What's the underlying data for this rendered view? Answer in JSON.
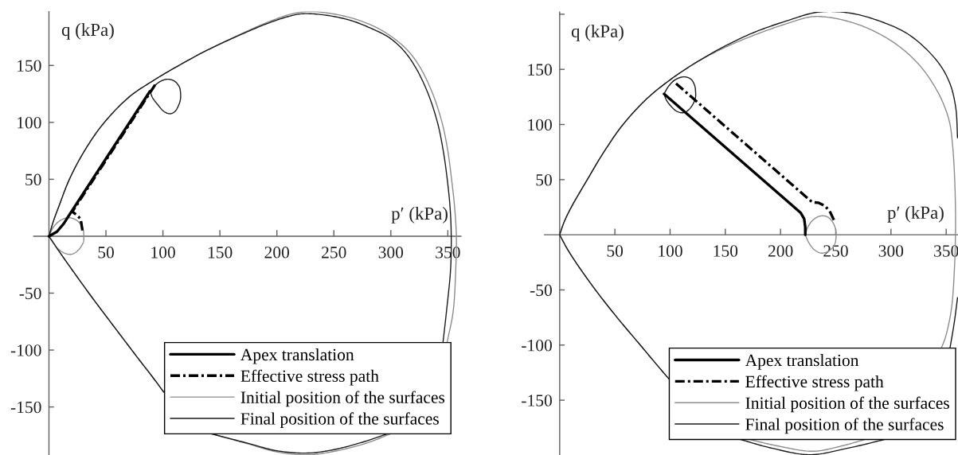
{
  "chart_data": [
    {
      "type": "line",
      "xlabel": "p′ (kPa)",
      "ylabel": "q (kPa)",
      "legend": "bottom right",
      "xlim": [
        -13.4,
        361.5
      ],
      "ylim": [
        -192.2,
        197.3
      ],
      "xticks": [
        50,
        100,
        150,
        200,
        250,
        300,
        350
      ],
      "yticks": [
        -150,
        -100,
        -50,
        50,
        100,
        150
      ],
      "series": [
        {
          "name": "Apex translation",
          "color": "#000000",
          "x": [
            0,
            7,
            13,
            18,
            88.6
          ],
          "values": [
            0,
            4,
            11,
            19,
            127.3
          ]
        },
        {
          "name": "Effective stress path",
          "color": "#000000",
          "line_style": "dashdot",
          "x": [
            29.4,
            27.8,
            24.3,
            20.5,
            93.7
          ],
          "values": [
            5,
            15.2,
            18.7,
            21.5,
            133.8
          ]
        },
        {
          "name": "Initial position of the surfaces",
          "color": "#8c8c8c",
          "x": [
            0,
            4,
            9,
            17.5,
            30,
            47,
            70,
            92,
            114,
            137,
            167,
            192,
            212,
            227,
            245,
            268,
            287,
            301,
            314,
            324.7,
            336,
            344.9,
            350,
            353.3,
            356,
            357.5,
            357,
            354.6,
            349.4,
            null,
            299.5,
            279.5,
            252.6,
            227,
            200,
            175,
            143,
            null,
            100.8,
            90,
            78,
            67,
            51.1,
            35.4,
            15.2,
            6,
            0,
            null,
            0,
            4,
            9,
            16.2,
            22.5,
            27.5,
            30.2,
            30.5,
            30.6,
            null,
            30.6,
            30.4,
            29.4,
            25.5,
            20,
            14,
            8,
            3.5,
            0
          ],
          "values": [
            0,
            13.5,
            27,
            49,
            73,
            98,
            122,
            137,
            150,
            162.5,
            177,
            188,
            195,
            197.3,
            196,
            191,
            183.5,
            175,
            164,
            150,
            127,
            100,
            75,
            50,
            25,
            0,
            -28,
            -66.8,
            -93,
            null,
            -173.7,
            -181.5,
            -188.5,
            -192,
            -189.5,
            -182.5,
            -173.7,
            null,
            -137,
            -122.5,
            -107,
            -92.5,
            -71.5,
            -50.5,
            -22.3,
            -9,
            0,
            null,
            0,
            8,
            13.2,
            16.2,
            15,
            11,
            5,
            2.5,
            -1,
            null,
            -1,
            -4.5,
            -7,
            -12.5,
            -15.8,
            -15,
            -11,
            -5.5,
            0
          ]
        },
        {
          "name": "Final position of the surfaces",
          "color": "#1a1a1a",
          "x": [
            0,
            4,
            9,
            17.5,
            30,
            47,
            70,
            92,
            114,
            137,
            167,
            192,
            210,
            222,
            242,
            265,
            284,
            297.8,
            310,
            320.7,
            332,
            340.9,
            346,
            349.5,
            352,
            353,
            352.4,
            349,
            345.8,
            null,
            296.5,
            275,
            250,
            227,
            200,
            175,
            143,
            null,
            100.8,
            90,
            78,
            67,
            51.1,
            35.4,
            15.2,
            6,
            0,
            null,
            88.6,
            93,
            99,
            104.8,
            110.5,
            114.5,
            115.3,
            115.6,
            null,
            115.6,
            115.3,
            114,
            110.5,
            106.3,
            101,
            95.5,
            91,
            88.6
          ],
          "values": [
            0,
            13.5,
            27,
            49,
            73,
            98,
            122,
            137,
            150,
            162.5,
            176.5,
            187,
            193,
            195.4,
            194.3,
            189.5,
            182,
            175,
            164.5,
            150,
            127,
            100,
            75,
            50,
            25,
            0,
            -29.6,
            -64.5,
            -93,
            null,
            -173.7,
            -181,
            -187.5,
            -190.5,
            -188.5,
            -182,
            -173.7,
            null,
            -137,
            -122.5,
            -107,
            -92.5,
            -71.5,
            -50.5,
            -22.3,
            -9,
            0,
            null,
            127.3,
            132.5,
            136.6,
            137.9,
            136,
            131,
            127.5,
            123.7,
            null,
            123.7,
            119.8,
            115.5,
            109.5,
            107.6,
            109.5,
            115.5,
            121.5,
            127.3
          ]
        }
      ]
    },
    {
      "type": "line",
      "xlabel": "p′ (kPa)",
      "ylabel": "q (kPa)",
      "legend": "bottom right",
      "xlim": [
        -13.7,
        360.7
      ],
      "ylim": [
        -199.7,
        202
      ],
      "xticks": [
        50,
        100,
        150,
        200,
        250,
        300,
        350
      ],
      "yticks": [
        -150,
        -100,
        -50,
        50,
        100,
        150,
        {
          "value": 200,
          "label": null
        }
      ],
      "series": [
        {
          "name": "Apex translation",
          "color": "#000000",
          "x": [
            222.4,
            222.4,
            221.4,
            218.2,
            94.5
          ],
          "values": [
            0,
            7,
            14.5,
            20,
            127.7
          ]
        },
        {
          "name": "Effective stress path",
          "color": "#000000",
          "line_style": "dashdot",
          "x": [
            248.3,
            245,
            240.5,
            234.5,
            228.7,
            102.7
          ],
          "values": [
            13.5,
            20.5,
            26,
            29,
            29.5,
            139.5
          ]
        },
        {
          "name": "Initial position of the surfaces",
          "color": "#8c8c8c",
          "x": [
            0,
            4,
            10,
            25,
            40,
            57,
            78,
            100,
            124,
            150,
            176,
            205.7,
            228,
            245,
            261.3,
            276,
            289.1,
            303,
            316.9,
            329,
            339.2,
            347,
            353.1,
            355.9,
            357.5,
            358.3,
            358.5,
            358.4,
            357.6,
            354.8,
            349.4,
            345.5,
            null,
            278.3,
            255,
            229.1,
            198,
            169.6,
            null,
            98.9,
            94,
            73,
            52,
            32.4,
            16,
            7,
            0,
            null,
            222.4,
            225,
            229.5,
            236,
            242,
            246.5,
            249.3,
            250.2,
            250.4,
            null,
            250.4,
            250.2,
            249.5,
            246.5,
            241,
            236,
            230,
            225.5,
            222.4
          ],
          "values": [
            0,
            11.5,
            24,
            50,
            75,
            99.5,
            122.5,
            140.5,
            156.5,
            170,
            181,
            191.5,
            197.7,
            197,
            193.5,
            188.5,
            182.4,
            174,
            162.9,
            150,
            135.1,
            120,
            101.8,
            80,
            55,
            30,
            10,
            0,
            -28,
            -66.8,
            -92.7,
            -103,
            null,
            -185.1,
            -191.6,
            -196.3,
            -191.6,
            -185.1,
            null,
            -130.6,
            -125,
            -100,
            -75,
            -50,
            -27,
            -13,
            0,
            null,
            0,
            7.5,
            13.5,
            17,
            16.5,
            12.5,
            7,
            3,
            0,
            null,
            0,
            -3,
            -7.3,
            -12.4,
            -16,
            -16.5,
            -13,
            -7,
            0
          ]
        },
        {
          "name": "Final position of the surfaces",
          "color": "#1a1a1a",
          "x": [
            0,
            4,
            10,
            25,
            40,
            57,
            78,
            100,
            124,
            150,
            176,
            205.7,
            233.5,
            261.3,
            289.1,
            316.9,
            341.9,
            353.1,
            358.6,
            360.3,
            null,
            360.3,
            357.3,
            353.4,
            null,
            296.4,
            260.2,
            226.5,
            192.9,
            161.8,
            null,
            98.9,
            94,
            73,
            52,
            32.4,
            16,
            7,
            0,
            null,
            94.5,
            98.5,
            104.5,
            112.4,
            119,
            122.5,
            123,
            123.2,
            null,
            123.2,
            123,
            121,
            117,
            112.4,
            106,
            100,
            96.5,
            94.5
          ],
          "values": [
            0,
            11.5,
            24,
            50,
            75,
            99.5,
            122.5,
            140.5,
            156.5,
            171.3,
            183.5,
            194,
            201.8,
            201.3,
            194,
            181,
            157.4,
            137.9,
            115.7,
            88,
            null,
            -57,
            -79.7,
            -103,
            null,
            -185.1,
            -193.7,
            -199.4,
            -193.7,
            -185.1,
            null,
            -130.6,
            -125,
            -100,
            -75,
            -50,
            -27,
            -13,
            0,
            null,
            127.7,
            134.5,
            140.5,
            143.2,
            141,
            134.5,
            130.5,
            127.7,
            null,
            127.7,
            124.5,
            119,
            113.5,
            110.7,
            112,
            117.5,
            122.5,
            127.7
          ]
        }
      ]
    }
  ]
}
